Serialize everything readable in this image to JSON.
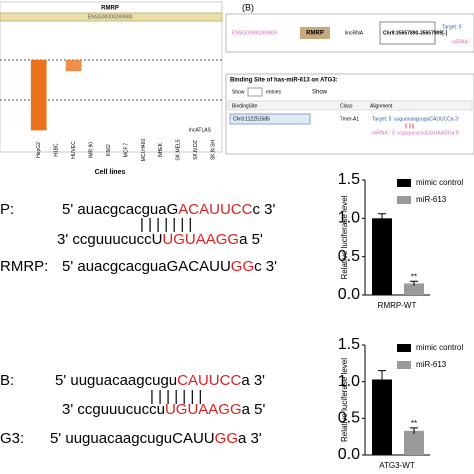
{
  "panel_a": {
    "gene": "RMRP",
    "ensembl": "ENSG00000269900",
    "x_label": "Cell lines",
    "source": "lncATLAS"
  },
  "panel_b": {
    "label": "(B)",
    "info": {
      "ensembl": "ENSG00000269900",
      "gene": "RMRP",
      "class": "lincRNA",
      "location": "Chr9:35657890-35657909[-]",
      "target": "Target: 5'",
      "mirna": "miRNA:"
    },
    "binding": {
      "title": "Binding Site of has-miR-613 on ATG3:",
      "show": "Show",
      "entries": "entries",
      "show_right": "Show",
      "columns": [
        "BindingSite",
        "Class",
        "Alignment"
      ],
      "row": [
        "Chr3:112251585",
        "7mer-A1"
      ],
      "alignment": [
        "Target: 5'  uuguacaagcuguCAUUCCa  3'",
        "|| ||||",
        "miRNA : 3'  ccguuucuccuUGUAAGGa  5'"
      ]
    }
  },
  "sequences": [
    {
      "label": "P:",
      "segments": [
        {
          "text": "5' auacgcacguaG",
          "color": "#000"
        },
        {
          "text": "ACAUUCC",
          "color": "#e02020"
        },
        {
          "text": "c 3'",
          "color": "#000"
        }
      ]
    },
    {
      "label": "",
      "segments": [
        {
          "text": "| | | | | | |",
          "color": "#000"
        }
      ]
    },
    {
      "label": "",
      "segments": [
        {
          "text": "3' ccguuucuccU",
          "color": "#000"
        },
        {
          "text": "UGUAAGG",
          "color": "#e02020"
        },
        {
          "text": "a 5'",
          "color": "#000"
        }
      ]
    },
    {
      "label": "RMRP:",
      "segments": [
        {
          "text": "5' auacgcacguaGACAUU",
          "color": "#000"
        },
        {
          "text": "GG",
          "color": "#e02020"
        },
        {
          "text": "c 3'",
          "color": "#000"
        }
      ]
    },
    {
      "label": "B:",
      "segments": [
        {
          "text": "5' uuguacaagcugu",
          "color": "#000"
        },
        {
          "text": "CAUUCC",
          "color": "#e02020"
        },
        {
          "text": "a 3'",
          "color": "#000"
        }
      ]
    },
    {
      "label": "",
      "segments": [
        {
          "text": "| | | | | | |",
          "color": "#000"
        }
      ]
    },
    {
      "label": "",
      "segments": [
        {
          "text": "3' ccguuucuccu",
          "color": "#000"
        },
        {
          "text": "UGUAAGG",
          "color": "#e02020"
        },
        {
          "text": "a 5'",
          "color": "#000"
        }
      ]
    },
    {
      "label": "G3:",
      "segments": [
        {
          "text": "5' uuguacaagcuguCAUU",
          "color": "#000"
        },
        {
          "text": "GG",
          "color": "#e02020"
        },
        {
          "text": "a 3'",
          "color": "#000"
        }
      ]
    }
  ],
  "chart_data": [
    {
      "type": "bar",
      "categories": [
        "HepG2",
        "H1BC",
        "HUVEC",
        "IMR.90",
        "K562",
        "MCF.7",
        "MCI.H460",
        "NHEK",
        "SK.MEL5",
        "SK.N.DZ",
        "SK.N.SH"
      ],
      "values": [
        -2.2,
        0,
        -0.35,
        0,
        0,
        0,
        0,
        0,
        0,
        0,
        0
      ],
      "color": "#e8731c",
      "ylim": [
        -2.5,
        0
      ]
    },
    {
      "type": "grouped_bar",
      "categories": [
        "RMRP-WT"
      ],
      "ylabel": "Relative luciferase level",
      "series": [
        {
          "name": "mimic control",
          "color": "#000000",
          "values": [
            1.0
          ],
          "errors": [
            0.06
          ]
        },
        {
          "name": "miR-613",
          "color": "#9a9a9a",
          "values": [
            0.15
          ],
          "errors": [
            0.03
          ],
          "value_labels": [
            "**"
          ]
        }
      ],
      "ylim": [
        0,
        1.5
      ],
      "yticks": [
        {
          "value": 0,
          "label": "0.0"
        },
        {
          "value": 0.5,
          "label": "0.5"
        },
        {
          "value": 1,
          "label": "1.0"
        },
        {
          "value": 1.5,
          "label": "1.5"
        }
      ]
    },
    {
      "type": "grouped_bar",
      "categories": [
        "ATG3-WT"
      ],
      "ylabel": "Relative luciferase level",
      "series": [
        {
          "name": "mimic control",
          "color": "#000000",
          "values": [
            1.03
          ],
          "errors": [
            0.12
          ]
        },
        {
          "name": "miR-613",
          "color": "#9a9a9a",
          "values": [
            0.33
          ],
          "errors": [
            0.04
          ],
          "value_labels": [
            "**"
          ]
        }
      ],
      "ylim": [
        0,
        1.5
      ],
      "yticks": [
        {
          "value": 0,
          "label": "0.0"
        },
        {
          "value": 0.5,
          "label": "0.5"
        },
        {
          "value": 1,
          "label": "1.0"
        },
        {
          "value": 1.5,
          "label": "1.5"
        }
      ]
    }
  ]
}
